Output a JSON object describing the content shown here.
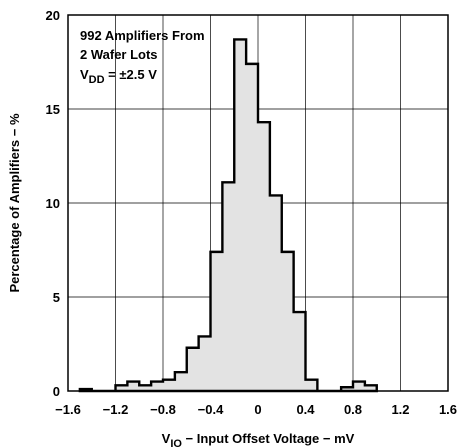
{
  "chart_data": {
    "type": "bar",
    "subtype": "histogram",
    "xlabel": {
      "symbol": "V",
      "subscript": "IO",
      "text": " − Input Offset Voltage − mV"
    },
    "ylabel": "Percentage of Amplifiers − %",
    "xlim": [
      -1.6,
      1.6
    ],
    "ylim": [
      0,
      20
    ],
    "xticks": [
      -1.6,
      -1.2,
      -0.8,
      -0.4,
      0,
      0.4,
      0.8,
      1.2,
      1.6
    ],
    "xtick_labels": [
      "−1.6",
      "−1.2",
      "−0.8",
      "−0.4",
      "0",
      "0.4",
      "0.8",
      "1.2",
      "1.6"
    ],
    "yticks": [
      0,
      5,
      10,
      15,
      20
    ],
    "ytick_labels": [
      "0",
      "5",
      "10",
      "15",
      "20"
    ],
    "grid": true,
    "bin_width": 0.1,
    "bin_edges": [
      -1.5,
      -1.4,
      -1.3,
      -1.2,
      -1.1,
      -1.0,
      -0.9,
      -0.8,
      -0.7,
      -0.6,
      -0.5,
      -0.4,
      -0.3,
      -0.2,
      -0.1,
      0.0,
      0.1,
      0.2,
      0.3,
      0.4,
      0.5,
      0.6,
      0.7,
      0.8,
      0.9,
      1.0
    ],
    "values": [
      0.1,
      0,
      0,
      0.3,
      0.5,
      0.3,
      0.5,
      0.6,
      1.0,
      2.3,
      2.9,
      7.4,
      11.1,
      18.7,
      17.4,
      14.3,
      10.4,
      7.4,
      4.2,
      0.6,
      0,
      0,
      0.2,
      0.5,
      0.3
    ],
    "fill_color": "#e3e3e3",
    "line_color": "#000000",
    "annotation": {
      "line1": "992 Amplifiers From",
      "line2": "2 Wafer Lots",
      "line3_symbol": "V",
      "line3_subscript": "DD",
      "line3_rest": " = ±2.5 V"
    }
  }
}
